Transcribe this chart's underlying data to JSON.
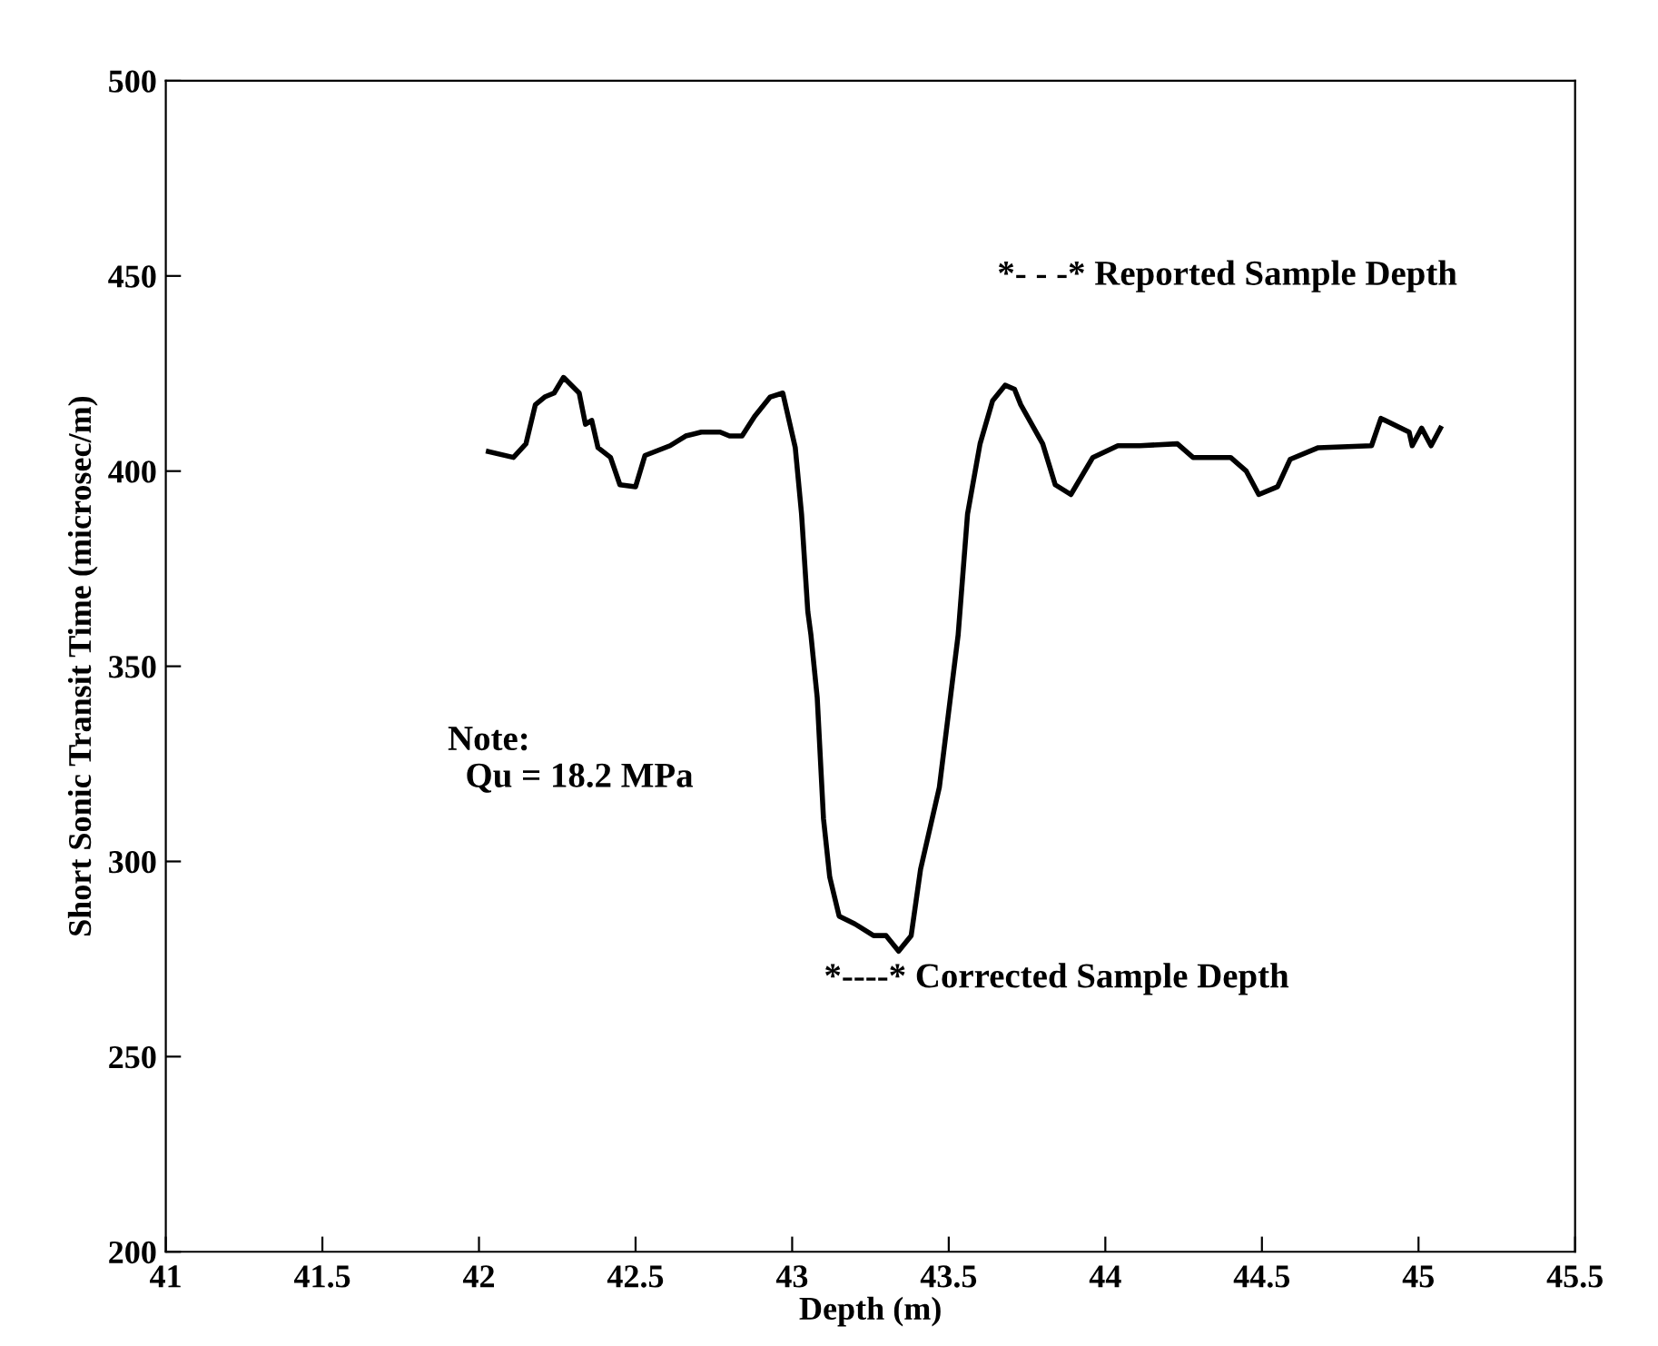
{
  "chart_data": {
    "type": "line",
    "xlabel": "Depth (m)",
    "ylabel": "Short Sonic Transit Time (microsec/m)",
    "xlim": [
      41,
      45.5
    ],
    "xticks": [
      41,
      41.5,
      42,
      42.5,
      43,
      43.5,
      44,
      44.5,
      45,
      45.5
    ],
    "ylim": [
      200,
      500
    ],
    "yticks": [
      200,
      250,
      300,
      350,
      400,
      450,
      500
    ],
    "grid": false,
    "legend": false,
    "marker": "none",
    "line_style": "solid",
    "series": [
      {
        "color": "#000000",
        "x": [
          42.03,
          42.11,
          42.15,
          42.18,
          42.21,
          42.24,
          42.27,
          42.32,
          42.34,
          42.36,
          42.38,
          42.42,
          42.45,
          42.5,
          42.53,
          42.61,
          42.66,
          42.71,
          42.77,
          42.8,
          42.84,
          42.88,
          42.93,
          42.97,
          43.01,
          43.03,
          43.05,
          43.06,
          43.08,
          43.1,
          43.12,
          43.15,
          43.2,
          43.26,
          43.3,
          43.34,
          43.38,
          43.41,
          43.47,
          43.53,
          43.56,
          43.6,
          43.64,
          43.68,
          43.71,
          43.73,
          43.8,
          43.84,
          43.89,
          43.96,
          44.04,
          44.11,
          44.23,
          44.28,
          44.4,
          44.45,
          44.49,
          44.55,
          44.59,
          44.68,
          44.85,
          44.88,
          44.97,
          44.98,
          45.01,
          45.04,
          45.07
        ],
        "values": [
          405,
          403.5,
          407,
          417,
          419,
          420,
          424,
          420,
          412,
          413,
          406,
          403.5,
          396.5,
          396,
          404,
          406.5,
          409,
          410,
          410,
          409,
          409,
          414,
          419,
          420,
          406,
          389,
          364,
          358,
          342,
          311,
          296,
          286,
          284,
          281,
          281,
          277,
          281,
          298,
          319,
          358,
          389,
          407,
          418,
          422,
          421,
          417,
          407,
          396.5,
          394,
          403.5,
          406.5,
          406.5,
          407,
          403.5,
          403.5,
          400,
          394,
          396,
          403,
          406,
          406.5,
          413.5,
          410,
          406.5,
          411,
          406.5,
          411
        ]
      }
    ],
    "annotations": [
      "Note:\n  Qu = 18.2 MPa",
      "*- - -* Reported Sample Depth",
      "*----* Corrected Sample Depth"
    ]
  }
}
